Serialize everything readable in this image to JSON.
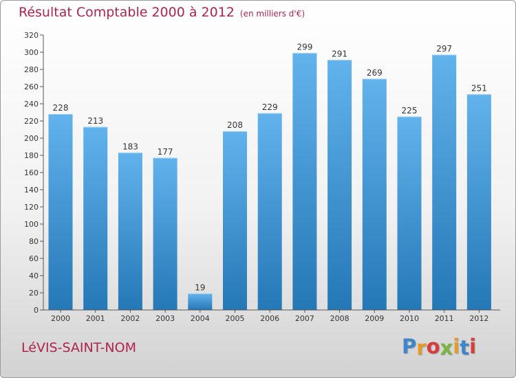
{
  "chart_data": {
    "type": "bar",
    "title": "Résultat Comptable 2000 à 2012",
    "subtitle": "(en milliers d'€)",
    "categories": [
      "2000",
      "2001",
      "2002",
      "2003",
      "2004",
      "2005",
      "2006",
      "2007",
      "2008",
      "2009",
      "2010",
      "2011",
      "2012"
    ],
    "values": [
      228,
      213,
      183,
      177,
      19,
      208,
      229,
      299,
      291,
      269,
      225,
      297,
      251
    ],
    "ylim": [
      0,
      320
    ],
    "yticks": [
      0,
      20,
      40,
      60,
      80,
      100,
      120,
      140,
      160,
      180,
      200,
      220,
      240,
      260,
      280,
      300,
      320
    ],
    "grid": false,
    "xlabel": "",
    "ylabel": ""
  },
  "footer": {
    "city": "LéVIS-SAINT-NOM",
    "logo_text": "Proxiti",
    "logo_letters": [
      "P",
      "r",
      "o",
      "x",
      "i",
      "t",
      "i"
    ],
    "logo_colors": [
      "#3c86c9",
      "#e39a28",
      "#d63c3c",
      "#7cb342",
      "#e39a28",
      "#3c86c9",
      "#d63c3c"
    ]
  },
  "colors": {
    "title": "#b0234f",
    "bar_top": "#62b2ec",
    "bar_bottom": "#2478b6",
    "axis": "#555555"
  }
}
